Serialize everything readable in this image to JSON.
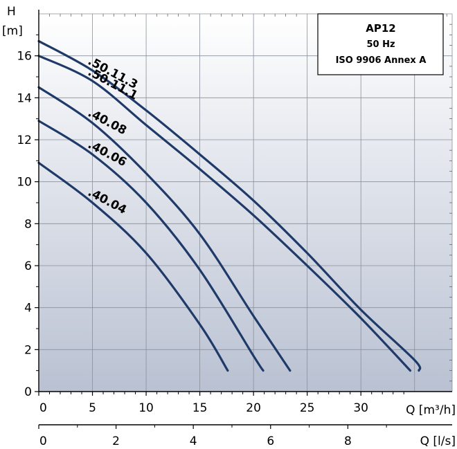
{
  "chart_data": {
    "type": "line",
    "title": "AP12",
    "legend": {
      "lines": [
        "AP12",
        "50 Hz",
        "ISO 9906 Annex A"
      ],
      "placement": "top-right"
    },
    "ylabel": "H",
    "yunit": "[m]",
    "xlabel": "Q [m³/h]",
    "x2label": "Q [l/s]",
    "xlim": [
      0,
      38.5
    ],
    "ylim": [
      0,
      18
    ],
    "x2lim": [
      0,
      10.7
    ],
    "xticks": [
      0,
      5,
      10,
      15,
      20,
      25,
      30
    ],
    "yticks": [
      0,
      2,
      4,
      6,
      8,
      10,
      12,
      14,
      16
    ],
    "x2ticks": [
      0,
      2,
      4,
      6,
      8
    ],
    "grid": true,
    "line_color": "#1f3a68",
    "series": [
      {
        "name": ".50.11.3",
        "x": [
          0,
          5,
          10,
          15,
          20,
          25,
          30,
          35,
          35.4
        ],
        "y": [
          16.7,
          15.3,
          13.4,
          11.3,
          9.1,
          6.6,
          3.9,
          1.5,
          1.0
        ]
      },
      {
        "name": ".50.11.1",
        "x": [
          0,
          5,
          10,
          15,
          20,
          25,
          30,
          34.6
        ],
        "y": [
          16.0,
          14.8,
          12.7,
          10.6,
          8.4,
          6.0,
          3.5,
          1.0
        ]
      },
      {
        "name": ".40.08",
        "x": [
          0,
          5,
          10,
          15,
          20,
          23.4
        ],
        "y": [
          14.5,
          12.8,
          10.4,
          7.5,
          3.6,
          1.0
        ]
      },
      {
        "name": ".40.06",
        "x": [
          0,
          5,
          10,
          15,
          20,
          20.9
        ],
        "y": [
          12.9,
          11.3,
          9.0,
          5.8,
          1.7,
          1.0
        ]
      },
      {
        "name": ".40.04",
        "x": [
          0,
          5,
          10,
          15,
          17.6
        ],
        "y": [
          10.9,
          9.0,
          6.6,
          3.2,
          1.0
        ]
      }
    ]
  }
}
